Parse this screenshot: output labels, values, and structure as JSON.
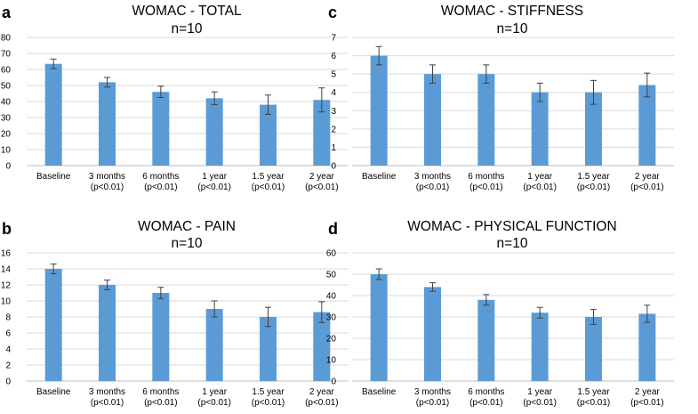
{
  "chart_data": [
    {
      "panel": "a",
      "type": "bar",
      "title": "WOMAC - TOTAL",
      "subtitle": "n=10",
      "categories": [
        [
          "Baseline"
        ],
        [
          "3 months",
          "(p<0.01)"
        ],
        [
          "6 months",
          "(p<0.01)"
        ],
        [
          "1 year",
          "(p<0.01)"
        ],
        [
          "1.5 year",
          "(p<0.01)"
        ],
        [
          "2 year",
          "(p<0.01)"
        ]
      ],
      "values": [
        63.5,
        52,
        46,
        42,
        38,
        41
      ],
      "errors": [
        3,
        3,
        3.5,
        4,
        6,
        7.5
      ],
      "ylim": [
        0,
        80
      ],
      "yticks": [
        0,
        10,
        20,
        30,
        40,
        50,
        60,
        70,
        80
      ],
      "grid": true,
      "bar_color": "#5b9bd5"
    },
    {
      "panel": "c",
      "type": "bar",
      "title": "WOMAC - STIFFNESS",
      "subtitle": "n=10",
      "categories": [
        [
          "Baseline"
        ],
        [
          "3 months",
          "(p<0.01)"
        ],
        [
          "6 months",
          "(p<0.01)"
        ],
        [
          "1 year",
          "(p<0.01)"
        ],
        [
          "1.5 year",
          "(p<0.01)"
        ],
        [
          "2 year",
          "(p<0.01)"
        ]
      ],
      "values": [
        6,
        5,
        5,
        4,
        4,
        4.4
      ],
      "errors": [
        0.5,
        0.5,
        0.5,
        0.5,
        0.65,
        0.65
      ],
      "ylim": [
        0,
        7
      ],
      "yticks": [
        0,
        1,
        2,
        3,
        4,
        5,
        6,
        7
      ],
      "grid": true,
      "bar_color": "#5b9bd5"
    },
    {
      "panel": "b",
      "type": "bar",
      "title": "WOMAC - PAIN",
      "subtitle": "n=10",
      "categories": [
        [
          "Baseline"
        ],
        [
          "3 months",
          "(p<0.01)"
        ],
        [
          "6 months",
          "(p<0.01)"
        ],
        [
          "1 year",
          "(p<0.01)"
        ],
        [
          "1.5 year",
          "(p<0.01)"
        ],
        [
          "2 year",
          "(p<0.01)"
        ]
      ],
      "values": [
        14,
        12,
        11,
        9,
        8,
        8.6
      ],
      "errors": [
        0.6,
        0.6,
        0.7,
        1,
        1.2,
        1.3
      ],
      "ylim": [
        0,
        16
      ],
      "yticks": [
        0,
        2,
        4,
        6,
        8,
        10,
        12,
        14,
        16
      ],
      "grid": true,
      "bar_color": "#5b9bd5"
    },
    {
      "panel": "d",
      "type": "bar",
      "title": "WOMAC - PHYSICAL FUNCTION",
      "subtitle": "n=10",
      "categories": [
        [
          "Baseline"
        ],
        [
          "3 months",
          "(p<0.01)"
        ],
        [
          "6 months",
          "(p<0.01)"
        ],
        [
          "1 year",
          "(p<0.01)"
        ],
        [
          "1.5 year",
          "(p<0.01)"
        ],
        [
          "2 year",
          "(p<0.01)"
        ]
      ],
      "values": [
        50,
        44,
        38,
        32,
        30,
        31.5
      ],
      "errors": [
        2.5,
        2,
        2.5,
        2.5,
        3.5,
        4
      ],
      "ylim": [
        0,
        60
      ],
      "yticks": [
        0,
        10,
        20,
        30,
        40,
        50,
        60
      ],
      "grid": true,
      "bar_color": "#5b9bd5"
    }
  ]
}
